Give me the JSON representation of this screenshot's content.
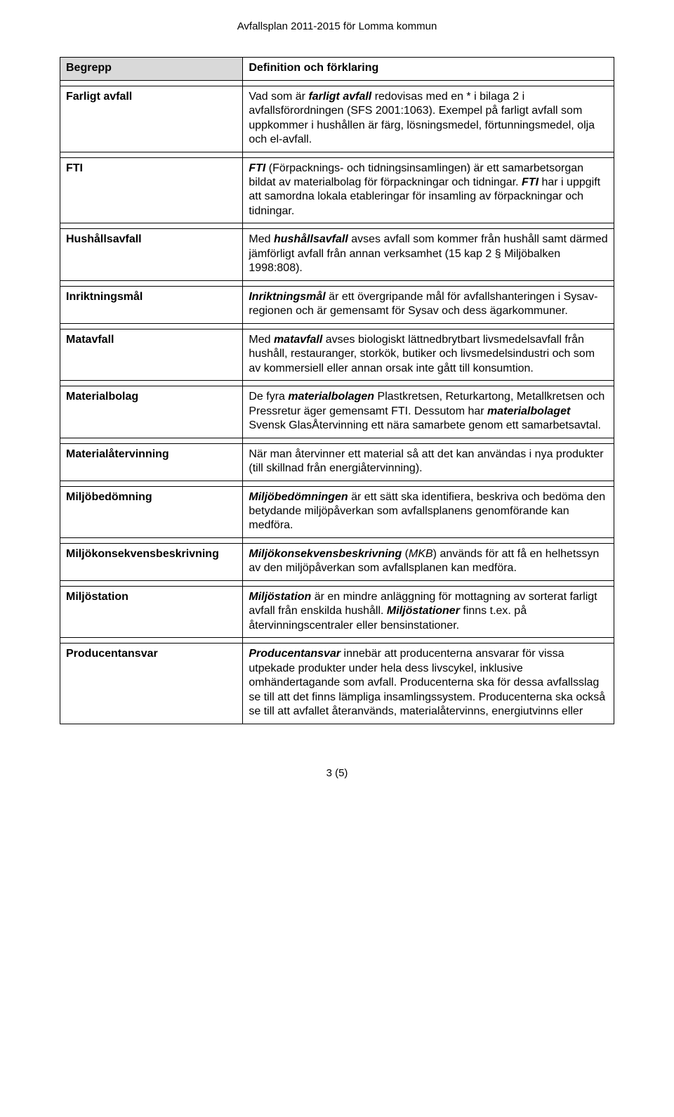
{
  "header": "Avfallsplan 2011-2015 för Lomma kommun",
  "columns": {
    "term": "Begrepp",
    "def": "Definition och förklaring"
  },
  "rows": [
    {
      "term": "Farligt avfall",
      "def_html": "Vad som är <span class='bi'>farligt avfall</span> redovisas med en * i bilaga 2 i avfallsförordningen (SFS 2001:1063). Exempel på farligt avfall som uppkommer i hushållen är färg, lösningsmedel, förtunningsmedel, olja och el-avfall."
    },
    {
      "term": "FTI",
      "def_html": "<span class='bi'>FTI</span> (Förpacknings- och tidningsinsamlingen) är ett samarbetsorgan bildat av materialbolag för förpackningar och tidningar. <span class='bi'>FTI</span> har i uppgift att samordna lokala etableringar för insamling av förpackningar och tidningar."
    },
    {
      "term": "Hushållsavfall",
      "def_html": "Med <span class='bi'>hushållsavfall</span> avses avfall som kommer från hushåll samt därmed jämförligt avfall från annan verksamhet (15 kap 2 § Miljöbalken 1998:808)."
    },
    {
      "term": "Inriktningsmål",
      "def_html": "<span class='bi'>Inriktningsmål</span> är ett övergripande mål för avfallshanteringen i Sysav-regionen och är gemensamt för Sysav och dess ägarkommuner."
    },
    {
      "term": "Matavfall",
      "def_html": "Med <span class='bi'>matavfall</span> avses biologiskt lättnedbrytbart livsmedelsavfall från hushåll, restauranger, storkök, butiker och livsmedelsindustri och som av kommersiell eller annan orsak inte gått till konsumtion."
    },
    {
      "term": "Materialbolag",
      "def_html": "De fyra <span class='bi'>materialbolagen</span> Plastkretsen, Returkartong, Metallkretsen och Pressretur äger gemensamt FTI. Dessutom har <span class='bi'>materialbolaget</span> Svensk GlasÅtervinning ett nära samarbete genom ett samarbetsavtal."
    },
    {
      "term": "Materialåtervinning",
      "def_html": "När man återvinner ett material så att det kan användas i nya produkter (till skillnad från energiåtervinning)."
    },
    {
      "term": "Miljöbedömning",
      "def_html": "<span class='bi'>Miljöbedömningen</span> är ett sätt ska identifiera, beskriva och bedöma den betydande miljöpåverkan som avfallsplanens genomförande kan medföra."
    },
    {
      "term": "Miljökonsekvensbeskrivning",
      "def_html": "<span class='bi'>Miljökonsekvensbeskrivning</span> (<span class='i'>MKB</span>) används för att få en helhetssyn av den miljöpåverkan som avfallsplanen kan medföra."
    },
    {
      "term": "Miljöstation",
      "def_html": "<span class='bi'>Miljöstation</span> är en mindre anläggning för mottagning av sorterat farligt avfall från enskilda hushåll. <span class='bi'>Miljöstationer</span> finns t.ex. på återvinningscentraler eller bensinstationer."
    },
    {
      "term": "Producentansvar",
      "def_html": "<span class='bi'>Producentansvar</span> innebär att producenterna ansvarar för vissa utpekade produkter under hela dess livscykel, inklusive omhändertagande som avfall. Producenterna ska för dessa avfallsslag se till att det finns lämpliga insamlingssystem. Producenterna ska också se till att avfallet återanvänds, materialåtervinns, energiutvinns eller"
    }
  ],
  "page_number": "3 (5)",
  "colors": {
    "header_bg": "#d9d9d9",
    "border": "#000000",
    "background": "#ffffff",
    "text": "#000000"
  },
  "typography": {
    "body_fontsize": 16,
    "header_fontsize": 15,
    "font_family": "Arial"
  }
}
